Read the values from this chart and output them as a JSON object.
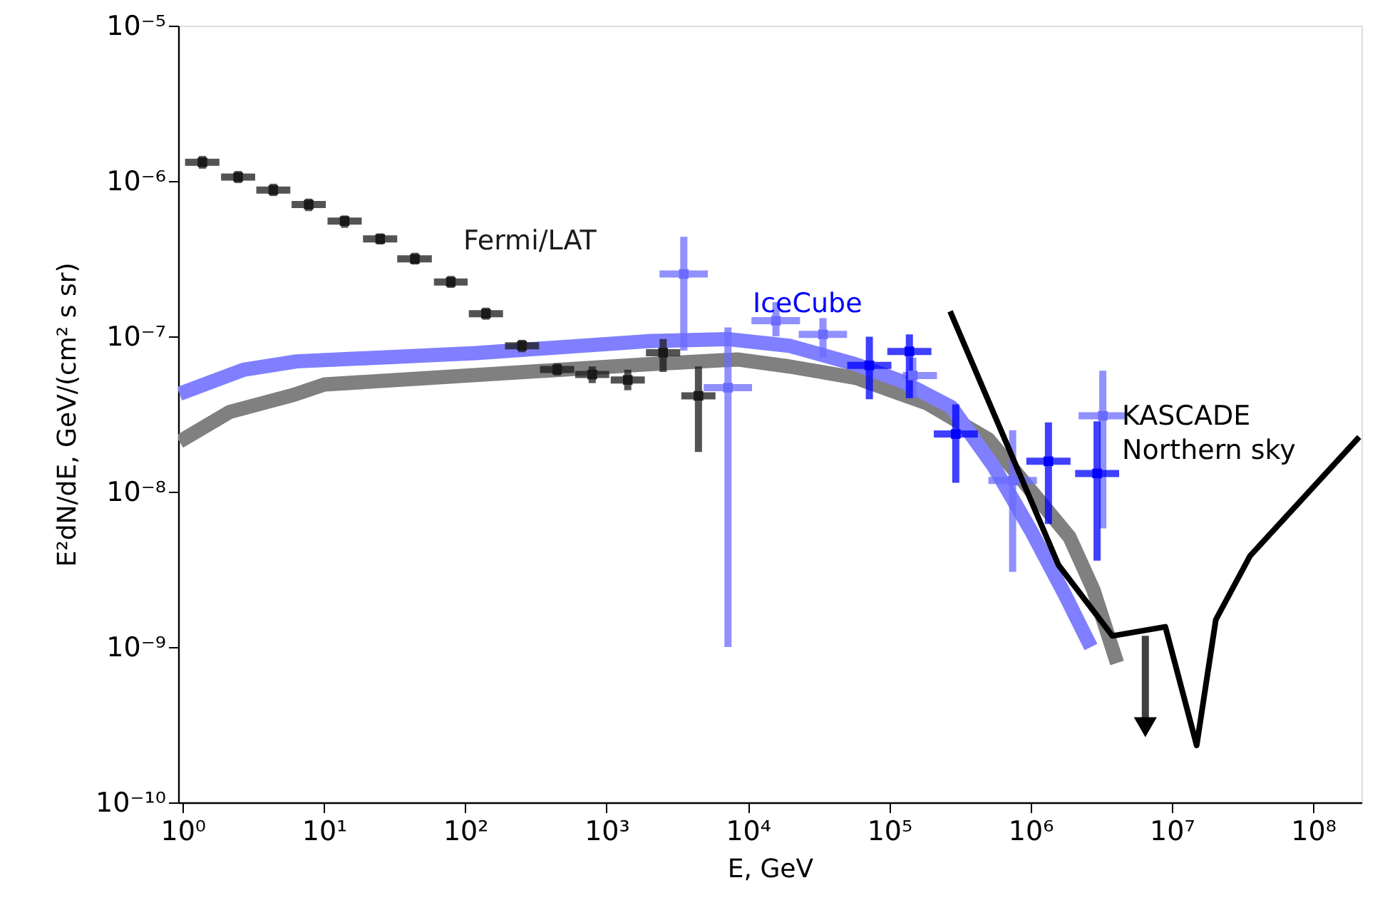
{
  "chart_data": {
    "type": "scatter",
    "xlabel": "E, GeV",
    "ylabel": "E²dN/dE, GeV/(cm² s sr)",
    "log": "xy",
    "grid": false,
    "xlim": [
      0.93,
      220000000.0
    ],
    "ylim": [
      1e-10,
      1e-05
    ],
    "xticks": [
      {
        "value": 1,
        "label": "10⁰"
      },
      {
        "value": 10,
        "label": "10¹"
      },
      {
        "value": 100,
        "label": "10²"
      },
      {
        "value": 1000,
        "label": "10³"
      },
      {
        "value": 10000,
        "label": "10⁴"
      },
      {
        "value": 100000,
        "label": "10⁵"
      },
      {
        "value": 1000000,
        "label": "10⁶"
      },
      {
        "value": 10000000,
        "label": "10⁷"
      },
      {
        "value": 100000000,
        "label": "10⁸"
      }
    ],
    "yticks": [
      {
        "value": 1e-10,
        "label": "10⁻¹⁰"
      },
      {
        "value": 1e-09,
        "label": "10⁻⁹"
      },
      {
        "value": 1e-08,
        "label": "10⁻⁸"
      },
      {
        "value": 1e-07,
        "label": "10⁻⁷"
      },
      {
        "value": 1e-06,
        "label": "10⁻⁶"
      },
      {
        "value": 1e-05,
        "label": "10⁻⁵"
      }
    ],
    "series": [
      {
        "type": "line",
        "color": "#808080",
        "marker": "none",
        "x": [
          0.95,
          2.15,
          6.1,
          10.1,
          1930,
          8430,
          19600,
          58300,
          186000,
          505000,
          1890000,
          2790000,
          4100000
        ],
        "values": [
          2.1e-08,
          3.26e-08,
          4.2e-08,
          4.9e-08,
          6.6e-08,
          7.1e-08,
          6.4e-08,
          5.4e-08,
          3.7e-08,
          2.17e-08,
          5.1e-09,
          2.33e-09,
          7.9e-10
        ]
      },
      {
        "type": "line",
        "color": "#7f7fff",
        "marker": "none",
        "x": [
          0.95,
          2.7,
          6.4,
          119,
          1930,
          7230,
          19600,
          58300,
          125000,
          276000,
          550000,
          1010000,
          1750000,
          2680000
        ],
        "values": [
          4.27e-08,
          6.1e-08,
          6.9e-08,
          7.8e-08,
          9.3e-08,
          9.6e-08,
          8.7e-08,
          6.6e-08,
          5.1e-08,
          3.5e-08,
          1.45e-08,
          5.6e-09,
          2.18e-09,
          1e-09
        ]
      },
      {
        "name": "Fermi/LAT",
        "color": "#1a1a1a",
        "marker": "square",
        "x": [
          1.38,
          2.47,
          4.38,
          7.8,
          14,
          25,
          44,
          79,
          140,
          252,
          447,
          792,
          1413,
          2512,
          4470
        ],
        "values": [
          1.32e-06,
          1.06e-06,
          8.75e-07,
          7.05e-07,
          5.52e-07,
          4.24e-07,
          3.15e-07,
          2.24e-07,
          1.4e-07,
          8.7e-08,
          6.12e-08,
          5.68e-08,
          5.24e-08,
          7.85e-08,
          4.14e-08
        ],
        "errors": [
          [
            1.2e-06,
            1.45e-06
          ],
          [
            9.7e-07,
            1.16e-06
          ],
          [
            8e-07,
            9.6e-07
          ],
          [
            6.4e-07,
            7.7e-07
          ],
          [
            5e-07,
            6e-07
          ],
          [
            3.9e-07,
            4.6e-07
          ],
          [
            2.9e-07,
            3.45e-07
          ],
          [
            2.05e-07,
            2.45e-07
          ],
          [
            1.28e-07,
            1.53e-07
          ],
          [
            7.9e-08,
            9.5e-08
          ],
          [
            5.6e-08,
            6.7e-08
          ],
          [
            5e-08,
            6.4e-08
          ],
          [
            4.5e-08,
            6.1e-08
          ],
          [
            5.9e-08,
            9.6e-08
          ],
          [
            1.8e-08,
            6.4e-08
          ]
        ],
        "xerrors": [
          [
            1.04,
            1.82
          ],
          [
            1.87,
            3.26
          ],
          [
            3.32,
            5.78
          ],
          [
            5.9,
            10.3
          ],
          [
            10.6,
            18.5
          ],
          [
            18.9,
            33
          ],
          [
            33,
            58
          ],
          [
            60,
            104
          ],
          [
            106,
            185
          ],
          [
            191,
            333
          ],
          [
            338,
            590
          ],
          [
            600,
            1045
          ],
          [
            1070,
            1865
          ],
          [
            1900,
            3320
          ],
          [
            3380,
            5900
          ]
        ]
      },
      {
        "color": "#6b6bff",
        "marker": "square",
        "x": [
          3520,
          7230,
          15800,
          34000,
          147000,
          748000,
          3250000
        ],
        "values": [
          2.52e-07,
          4.67e-08,
          1.26e-07,
          1.03e-07,
          5.6e-08,
          1.18e-08,
          3.08e-08
        ],
        "errors": [
          [
            8.1e-08,
            4.38e-07
          ],
          [
            1e-09,
            1.14e-07
          ],
          [
            1e-07,
            1.66e-07
          ],
          [
            7.35e-08,
            1.31e-07
          ],
          [
            4e-08,
            7.3e-08
          ],
          [
            3.05e-09,
            2.49e-08
          ],
          [
            5.8e-09,
            6e-08
          ]
        ],
        "xerrors": [
          [
            2370,
            5210
          ],
          [
            4870,
            10700
          ],
          [
            10600,
            23400
          ],
          [
            22900,
            50300
          ],
          [
            125000,
            218000
          ],
          [
            504000,
            1110000
          ],
          [
            2190000,
            4810000
          ]
        ]
      },
      {
        "name": "IceCube",
        "color": "#0000ff",
        "marker": "square",
        "x": [
          72400,
          139000,
          296000,
          1340000,
          2960000
        ],
        "values": [
          6.5e-08,
          8e-08,
          2.35e-08,
          1.57e-08,
          1.31e-08
        ],
        "errors": [
          [
            3.94e-08,
            9.95e-08
          ],
          [
            4e-08,
            1.03e-07
          ],
          [
            1.14e-08,
            3.65e-08
          ],
          [
            6.2e-09,
            2.79e-08
          ],
          [
            3.6e-09,
            2.84e-08
          ]
        ],
        "xerrors": [
          [
            50500,
            103700
          ],
          [
            97000,
            199000
          ],
          [
            207000,
            424000
          ],
          [
            935000,
            1920000
          ],
          [
            2070000,
            4240000
          ]
        ]
      },
      {
        "type": "line",
        "name": "KASCADE\nNorthern sky",
        "color": "#000000",
        "marker": "none",
        "x": [
          270000,
          1580000,
          3800000,
          9000000,
          15000000,
          20500000,
          35800000,
          212000000
        ],
        "values": [
          1.45e-07,
          3.37e-09,
          1.18e-09,
          1.35e-09,
          2.33e-10,
          1.5e-09,
          3.86e-09,
          2.25e-08
        ]
      },
      {
        "color": "#000000",
        "marker": "triangle",
        "x": [
          6500000
        ],
        "values": [
          3.05e-10
        ],
        "errors": [
          [
            3.05e-10,
            1.18e-09
          ]
        ]
      }
    ]
  }
}
